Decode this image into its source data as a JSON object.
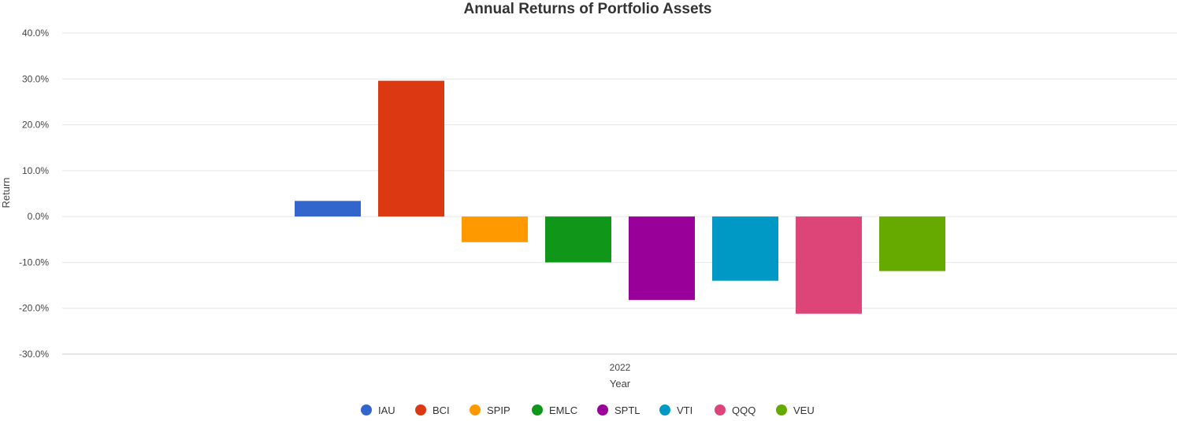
{
  "chart_data": {
    "type": "bar",
    "title": "Annual Returns of Portfolio Assets",
    "xlabel": "Year",
    "ylabel": "Return",
    "categories": [
      "2022"
    ],
    "ylim": [
      -30,
      40
    ],
    "yticks": [
      40,
      30,
      20,
      10,
      0,
      -10,
      -20,
      -30
    ],
    "ytick_labels": [
      "40.0%",
      "30.0%",
      "20.0%",
      "10.0%",
      "0.0%",
      "-10.0%",
      "-20.0%",
      "-30.0%"
    ],
    "grid": true,
    "legend_position": "bottom",
    "series": [
      {
        "name": "IAU",
        "values": [
          3.4
        ],
        "color": "#3366cc"
      },
      {
        "name": "BCI",
        "values": [
          29.6
        ],
        "color": "#dc3912"
      },
      {
        "name": "SPIP",
        "values": [
          -5.6
        ],
        "color": "#ff9900"
      },
      {
        "name": "EMLC",
        "values": [
          -10.0
        ],
        "color": "#109618"
      },
      {
        "name": "SPTL",
        "values": [
          -18.2
        ],
        "color": "#990099"
      },
      {
        "name": "VTI",
        "values": [
          -14.0
        ],
        "color": "#0099c6"
      },
      {
        "name": "QQQ",
        "values": [
          -21.2
        ],
        "color": "#dd4477"
      },
      {
        "name": "VEU",
        "values": [
          -11.9
        ],
        "color": "#66aa00"
      }
    ]
  }
}
